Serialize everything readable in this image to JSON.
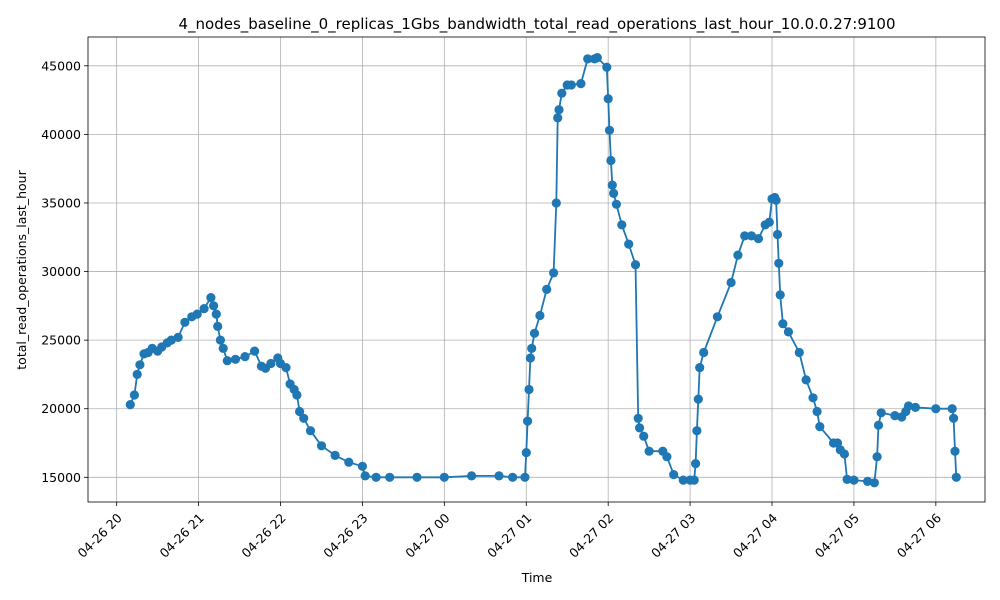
{
  "chart_data": {
    "type": "line",
    "title": "4_nodes_baseline_0_replicas_1Gbs_bandwidth_total_read_operations_last_hour_10.0.0.27:9100",
    "xlabel": "Time",
    "ylabel": "total_read_operations_last_hour",
    "x_tick_labels": [
      "04-26 20",
      "04-26 21",
      "04-26 22",
      "04-26 23",
      "04-27 00",
      "04-27 01",
      "04-27 02",
      "04-27 03",
      "04-27 04",
      "04-27 05",
      "04-27 06"
    ],
    "y_ticks": [
      15000,
      20000,
      25000,
      30000,
      35000,
      40000,
      45000
    ],
    "y_tick_labels": [
      "15000",
      "20000",
      "25000",
      "30000",
      "35000",
      "40000",
      "45000"
    ],
    "xlim": [
      "2026-04-26 19:39",
      "2026-04-27 06:36"
    ],
    "ylim": [
      13200,
      47100
    ],
    "grid": true,
    "color": "#1f77b4",
    "marker": "circle",
    "series": [
      {
        "x": [
          "2026-04-26 20:10",
          "2026-04-26 20:13",
          "2026-04-26 20:15",
          "2026-04-26 20:17",
          "2026-04-26 20:20",
          "2026-04-26 20:23",
          "2026-04-26 20:26",
          "2026-04-26 20:30",
          "2026-04-26 20:33",
          "2026-04-26 20:37",
          "2026-04-26 20:40",
          "2026-04-26 20:45",
          "2026-04-26 20:50",
          "2026-04-26 20:55",
          "2026-04-26 20:59",
          "2026-04-26 21:04",
          "2026-04-26 21:09",
          "2026-04-26 21:11",
          "2026-04-26 21:13",
          "2026-04-26 21:14",
          "2026-04-26 21:16",
          "2026-04-26 21:18",
          "2026-04-26 21:21",
          "2026-04-26 21:27",
          "2026-04-26 21:34",
          "2026-04-26 21:41",
          "2026-04-26 21:46",
          "2026-04-26 21:49",
          "2026-04-26 21:53",
          "2026-04-26 21:58",
          "2026-04-26 22:00",
          "2026-04-26 22:04",
          "2026-04-26 22:07",
          "2026-04-26 22:10",
          "2026-04-26 22:12",
          "2026-04-26 22:14",
          "2026-04-26 22:17",
          "2026-04-26 22:22",
          "2026-04-26 22:30",
          "2026-04-26 22:40",
          "2026-04-26 22:50",
          "2026-04-26 23:00",
          "2026-04-26 23:02",
          "2026-04-26 23:10",
          "2026-04-26 23:20",
          "2026-04-26 23:40",
          "2026-04-27 00:00",
          "2026-04-27 00:20",
          "2026-04-27 00:40",
          "2026-04-27 00:50",
          "2026-04-27 00:59",
          "2026-04-27 01:00",
          "2026-04-27 01:01",
          "2026-04-27 01:02",
          "2026-04-27 01:03",
          "2026-04-27 01:04",
          "2026-04-27 01:06",
          "2026-04-27 01:10",
          "2026-04-27 01:15",
          "2026-04-27 01:20",
          "2026-04-27 01:22",
          "2026-04-27 01:23",
          "2026-04-27 01:24",
          "2026-04-27 01:26",
          "2026-04-27 01:30",
          "2026-04-27 01:33",
          "2026-04-27 01:40",
          "2026-04-27 01:45",
          "2026-04-27 01:50",
          "2026-04-27 01:52",
          "2026-04-27 01:59",
          "2026-04-27 02:00",
          "2026-04-27 02:01",
          "2026-04-27 02:02",
          "2026-04-27 02:03",
          "2026-04-27 02:04",
          "2026-04-27 02:06",
          "2026-04-27 02:10",
          "2026-04-27 02:15",
          "2026-04-27 02:20",
          "2026-04-27 02:22",
          "2026-04-27 02:23",
          "2026-04-27 02:26",
          "2026-04-27 02:30",
          "2026-04-27 02:40",
          "2026-04-27 02:43",
          "2026-04-27 02:48",
          "2026-04-27 02:55",
          "2026-04-27 03:00",
          "2026-04-27 03:03",
          "2026-04-27 03:04",
          "2026-04-27 03:05",
          "2026-04-27 03:06",
          "2026-04-27 03:07",
          "2026-04-27 03:10",
          "2026-04-27 03:20",
          "2026-04-27 03:30",
          "2026-04-27 03:35",
          "2026-04-27 03:40",
          "2026-04-27 03:45",
          "2026-04-27 03:50",
          "2026-04-27 03:55",
          "2026-04-27 03:58",
          "2026-04-27 04:00",
          "2026-04-27 04:02",
          "2026-04-27 04:03",
          "2026-04-27 04:04",
          "2026-04-27 04:05",
          "2026-04-27 04:06",
          "2026-04-27 04:08",
          "2026-04-27 04:12",
          "2026-04-27 04:20",
          "2026-04-27 04:25",
          "2026-04-27 04:30",
          "2026-04-27 04:33",
          "2026-04-27 04:35",
          "2026-04-27 04:45",
          "2026-04-27 04:48",
          "2026-04-27 04:50",
          "2026-04-27 04:53",
          "2026-04-27 04:55",
          "2026-04-27 05:00",
          "2026-04-27 05:10",
          "2026-04-27 05:15",
          "2026-04-27 05:17",
          "2026-04-27 05:18",
          "2026-04-27 05:20",
          "2026-04-27 05:30",
          "2026-04-27 05:35",
          "2026-04-27 05:38",
          "2026-04-27 05:40",
          "2026-04-27 05:45",
          "2026-04-27 06:00",
          "2026-04-27 06:12",
          "2026-04-27 06:13",
          "2026-04-27 06:14",
          "2026-04-27 06:15"
        ],
        "y": [
          20300,
          21000,
          22500,
          23200,
          24000,
          24100,
          24400,
          24200,
          24500,
          24800,
          25000,
          25200,
          26300,
          26700,
          26900,
          27300,
          28100,
          27500,
          26900,
          26000,
          25000,
          24400,
          23500,
          23600,
          23800,
          24200,
          23100,
          22950,
          23300,
          23700,
          23300,
          23000,
          21800,
          21400,
          21000,
          19800,
          19300,
          18400,
          17300,
          16600,
          16100,
          15800,
          15100,
          15000,
          15000,
          15000,
          15000,
          15100,
          15100,
          15000,
          15000,
          16800,
          19100,
          21400,
          23700,
          24400,
          25500,
          26800,
          28700,
          29900,
          35000,
          41200,
          41800,
          43000,
          43600,
          43600,
          43700,
          45500,
          45500,
          45600,
          44900,
          42600,
          40300,
          38100,
          36300,
          35700,
          34900,
          33400,
          32000,
          30500,
          19300,
          18600,
          18000,
          16900,
          16900,
          16500,
          15200,
          14800,
          14800,
          14800,
          16000,
          18400,
          20700,
          23000,
          24100,
          26700,
          29200,
          31200,
          32600,
          32600,
          32400,
          33400,
          33600,
          35300,
          35400,
          35200,
          32700,
          30600,
          28300,
          26200,
          25600,
          24100,
          22100,
          20800,
          19800,
          18700,
          17500,
          17500,
          17000,
          16700,
          14850,
          14800,
          14700,
          14600,
          16500,
          18800,
          19700,
          19500,
          19400,
          19800,
          20200,
          20100,
          20000,
          20000,
          19300,
          16900,
          15000
        ]
      }
    ]
  }
}
